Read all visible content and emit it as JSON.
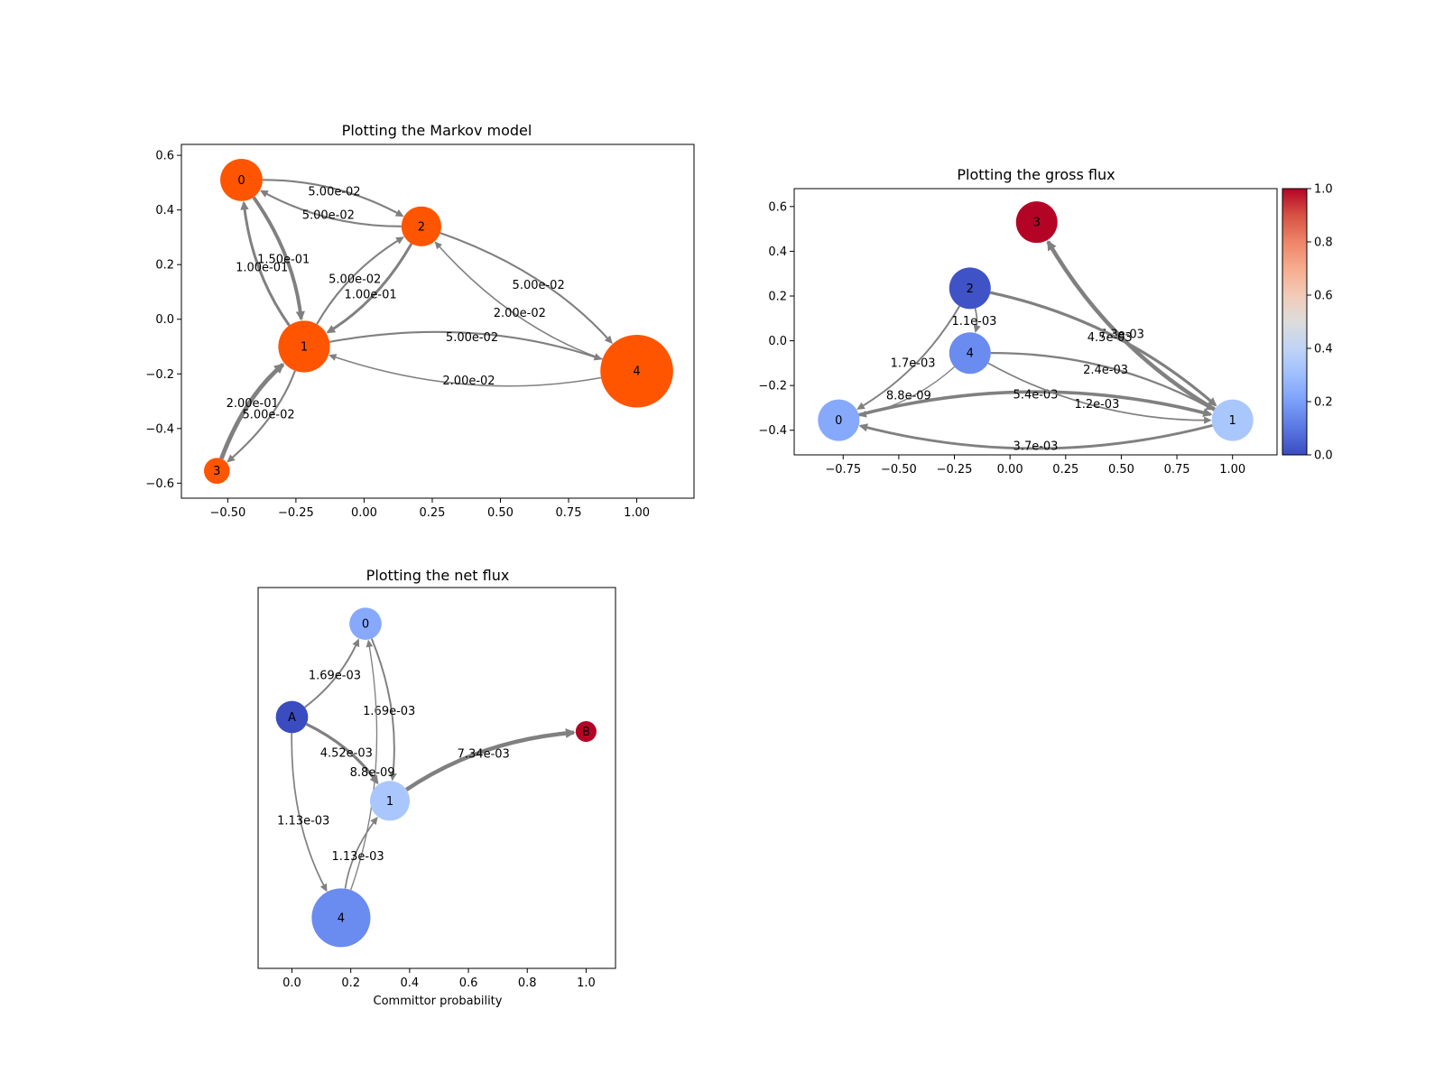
{
  "chart_data": [
    {
      "type": "network",
      "title": "Plotting the Markov model",
      "xlabel": "",
      "ylabel": "",
      "xlim": [
        -0.67,
        1.21
      ],
      "ylim": [
        -0.655,
        0.64
      ],
      "xticks": [
        -0.5,
        -0.25,
        0.0,
        0.25,
        0.5,
        0.75,
        1.0
      ],
      "xtick_labels": [
        "−0.50",
        "−0.25",
        "0.00",
        "0.25",
        "0.50",
        "0.75",
        "1.00"
      ],
      "yticks": [
        -0.6,
        -0.4,
        -0.2,
        0.0,
        0.2,
        0.4,
        0.6
      ],
      "ytick_labels": [
        "−0.6",
        "−0.4",
        "−0.2",
        "0.0",
        "0.2",
        "0.4",
        "0.6"
      ],
      "node_color": "#ff5500",
      "nodes": [
        {
          "id": "0",
          "x": -0.45,
          "y": 0.51,
          "size": 0.9
        },
        {
          "id": "1",
          "x": -0.22,
          "y": -0.1,
          "size": 1.1
        },
        {
          "id": "2",
          "x": 0.21,
          "y": 0.34,
          "size": 0.85
        },
        {
          "id": "3",
          "x": -0.54,
          "y": -0.555,
          "size": 0.55
        },
        {
          "id": "4",
          "x": 1.0,
          "y": -0.19,
          "size": 1.55
        }
      ],
      "edges": [
        {
          "from": "0",
          "to": "1",
          "label": "1.50e-01",
          "weight": 0.15,
          "curve": 1
        },
        {
          "from": "1",
          "to": "0",
          "label": "1.00e-01",
          "weight": 0.1,
          "curve": 1
        },
        {
          "from": "0",
          "to": "2",
          "label": "5.00e-02",
          "weight": 0.05,
          "curve": 1
        },
        {
          "from": "2",
          "to": "0",
          "label": "5.00e-02",
          "weight": 0.05,
          "curve": 1
        },
        {
          "from": "1",
          "to": "2",
          "label": "5.00e-02",
          "weight": 0.05,
          "curve": 1
        },
        {
          "from": "2",
          "to": "1",
          "label": "1.00e-01",
          "weight": 0.1,
          "curve": 1
        },
        {
          "from": "2",
          "to": "4",
          "label": "5.00e-02",
          "weight": 0.05,
          "curve": 1
        },
        {
          "from": "4",
          "to": "2",
          "label": "2.00e-02",
          "weight": 0.02,
          "curve": 1
        },
        {
          "from": "1",
          "to": "4",
          "label": "5.00e-02",
          "weight": 0.05,
          "curve": 1
        },
        {
          "from": "4",
          "to": "1",
          "label": "2.00e-02",
          "weight": 0.02,
          "curve": 1
        },
        {
          "from": "3",
          "to": "1",
          "label": "2.00e-01",
          "weight": 0.2,
          "curve": 1
        },
        {
          "from": "1",
          "to": "3",
          "label": "5.00e-02",
          "weight": 0.05,
          "curve": 1
        }
      ]
    },
    {
      "type": "network",
      "title": "Plotting the gross flux",
      "xlabel": "",
      "ylabel": "",
      "xlim": [
        -0.97,
        1.2
      ],
      "ylim": [
        -0.51,
        0.68
      ],
      "xticks": [
        -0.75,
        -0.5,
        -0.25,
        0.0,
        0.25,
        0.5,
        0.75,
        1.0
      ],
      "xtick_labels": [
        "−0.75",
        "−0.50",
        "−0.25",
        "0.00",
        "0.25",
        "0.50",
        "0.75",
        "1.00"
      ],
      "yticks": [
        -0.4,
        -0.2,
        0.0,
        0.2,
        0.4,
        0.6
      ],
      "ytick_labels": [
        "−0.4",
        "−0.2",
        "0.0",
        "0.2",
        "0.4",
        "0.6"
      ],
      "colorbar": {
        "min": 0.0,
        "max": 1.0,
        "ticks": [
          "0.0",
          "0.2",
          "0.4",
          "0.6",
          "0.8",
          "1.0"
        ],
        "colormap": [
          "#3b4cc0",
          "#5977e3",
          "#7b9ff9",
          "#9ebeff",
          "#c0d4f5",
          "#dddcdc",
          "#f2cbb7",
          "#f7ac8e",
          "#ee8468",
          "#d65244",
          "#b40426"
        ]
      },
      "nodes": [
        {
          "id": "0",
          "x": -0.77,
          "y": -0.355,
          "value": 0.29,
          "color": "#86a9fc",
          "size": 1.0
        },
        {
          "id": "1",
          "x": 1.0,
          "y": -0.355,
          "value": 0.34,
          "color": "#aac7fd",
          "size": 1.0
        },
        {
          "id": "2",
          "x": -0.18,
          "y": 0.235,
          "value": 0.02,
          "color": "#3f53c6",
          "size": 1.0
        },
        {
          "id": "3",
          "x": 0.12,
          "y": 0.53,
          "value": 1.0,
          "color": "#b40426",
          "size": 1.0
        },
        {
          "id": "4",
          "x": -0.18,
          "y": -0.055,
          "value": 0.15,
          "color": "#6a8bef",
          "size": 1.0
        }
      ],
      "edges": [
        {
          "from": "1",
          "to": "3",
          "label": "7.3e-03",
          "weight": 7.3,
          "curve": 1
        },
        {
          "from": "2",
          "to": "1",
          "label": "4.5e-03",
          "weight": 4.5,
          "curve": 1
        },
        {
          "from": "4",
          "to": "1",
          "label": "2.4e-03",
          "weight": 2.4,
          "curve": 1
        },
        {
          "from": "0",
          "to": "1",
          "label": "5.4e-03",
          "weight": 5.4,
          "curve": 1
        },
        {
          "from": "1",
          "to": "0",
          "label": "3.7e-03",
          "weight": 3.7,
          "curve": 1
        },
        {
          "from": "2",
          "to": "0",
          "label": "1.7e-03",
          "weight": 1.7,
          "curve": 1
        },
        {
          "from": "2",
          "to": "4",
          "label": "1.1e-03",
          "weight": 1.1,
          "curve": 1
        },
        {
          "from": "4",
          "to": "0",
          "label": "8.8e-09",
          "weight": 0.3,
          "curve": 1
        },
        {
          "from": "4",
          "to": "1",
          "label": "1.2e-03",
          "weight": 1.2,
          "curve": -1
        }
      ]
    },
    {
      "type": "network",
      "title": "Plotting the net flux",
      "xlabel": "Committor probability",
      "ylabel": "",
      "xlim": [
        -0.115,
        1.1
      ],
      "ylim": [
        0,
        1
      ],
      "xticks": [
        0.0,
        0.2,
        0.4,
        0.6,
        0.8,
        1.0
      ],
      "xtick_labels": [
        "0.0",
        "0.2",
        "0.4",
        "0.6",
        "0.8",
        "1.0"
      ],
      "yticks": [],
      "ytick_labels": [],
      "nodes": [
        {
          "id": "0",
          "x": 0.25,
          "y": 0.905,
          "value": 0.29,
          "color": "#86a9fc",
          "size": 0.85
        },
        {
          "id": "A",
          "x": 0.0,
          "y": 0.66,
          "value": 0.0,
          "color": "#3b4cc0",
          "size": 0.85
        },
        {
          "id": "B",
          "x": 1.0,
          "y": 0.622,
          "value": 1.0,
          "color": "#b40426",
          "size": 0.55
        },
        {
          "id": "1",
          "x": 0.333,
          "y": 0.44,
          "value": 0.34,
          "color": "#aac7fd",
          "size": 1.05
        },
        {
          "id": "4",
          "x": 0.167,
          "y": 0.133,
          "value": 0.15,
          "color": "#6a8bef",
          "size": 1.55
        }
      ],
      "edges": [
        {
          "from": "A",
          "to": "0",
          "label": "1.69e-03",
          "weight": 1.69,
          "curve": -1
        },
        {
          "from": "0",
          "to": "1",
          "label": "1.69e-03",
          "weight": 1.69,
          "curve": 1
        },
        {
          "from": "1",
          "to": "B",
          "label": "7.34e-03",
          "weight": 7.34,
          "curve": 1
        },
        {
          "from": "A",
          "to": "1",
          "label": "4.52e-03",
          "weight": 4.52,
          "curve": 1
        },
        {
          "from": "4",
          "to": "0",
          "label": "8.8e-09",
          "weight": 0.3,
          "curve": -1
        },
        {
          "from": "A",
          "to": "4",
          "label": "1.13e-03",
          "weight": 1.13,
          "curve": -1
        },
        {
          "from": "4",
          "to": "1",
          "label": "1.13e-03",
          "weight": 1.13,
          "curve": 1
        }
      ]
    }
  ]
}
